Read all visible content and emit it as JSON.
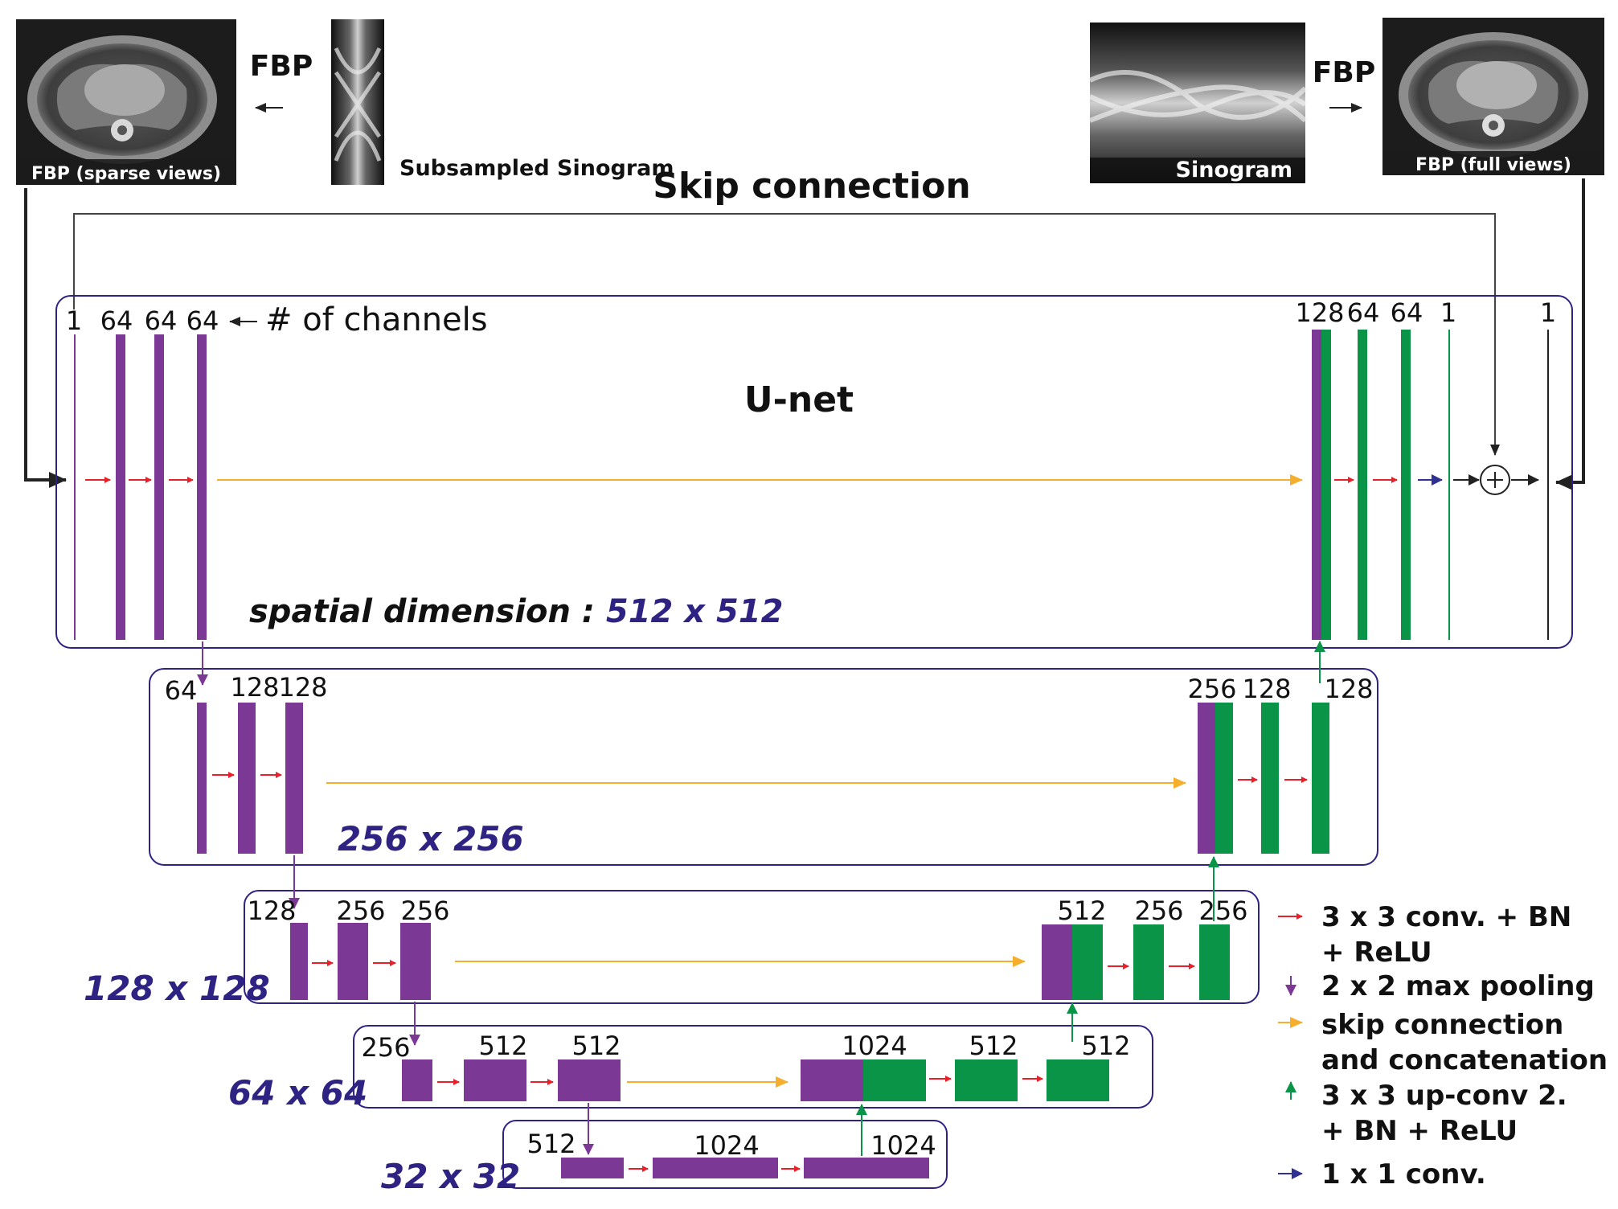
{
  "top": {
    "fbp_left": "FBP",
    "fbp_right": "FBP",
    "caption_sparse": "FBP (sparse views)",
    "caption_subsampled": "Subsampled Sinogram",
    "caption_sinogram": "Sinogram",
    "caption_full": "FBP (full views)",
    "skip_connection": "Skip connection"
  },
  "unet": {
    "title": "U-net",
    "channels_note": "# of channels",
    "spatial_prefix": "spatial dimension : ",
    "spatial_value": "512 x 512"
  },
  "levels": {
    "l1": {
      "in": [
        "1",
        "64",
        "64",
        "64"
      ],
      "out": [
        "128",
        "64",
        "64",
        "1"
      ],
      "final": "1"
    },
    "l2": {
      "dim": "256 x 256",
      "in": [
        "64",
        "128",
        "128"
      ],
      "out": [
        "256",
        "128",
        "128"
      ]
    },
    "l3": {
      "dim": "128 x 128",
      "in": [
        "128",
        "256",
        "256"
      ],
      "out": [
        "512",
        "256",
        "256"
      ]
    },
    "l4": {
      "dim": "64 x 64",
      "in": [
        "256",
        "512",
        "512"
      ],
      "out": [
        "1024",
        "512",
        "512"
      ]
    },
    "l5": {
      "dim": "32 x 32",
      "in": [
        "512",
        "1024",
        "1024"
      ]
    }
  },
  "legend": {
    "conv_l1": "3 x 3 conv. + BN",
    "conv_l2": "+ ReLU",
    "pool": "2 x 2 max pooling",
    "skip_l1": "skip connection",
    "skip_l2": "and concatenation",
    "up_l1": "3 x 3 up-conv 2.",
    "up_l2": "+ BN + ReLU",
    "oneconv": "1 x 1 conv."
  },
  "colors": {
    "purple": "#7b3894",
    "green": "#0a9447",
    "red": "#e8202a",
    "orange": "#f6ae2d",
    "blue": "#2e3192",
    "box": "#2e2383"
  }
}
